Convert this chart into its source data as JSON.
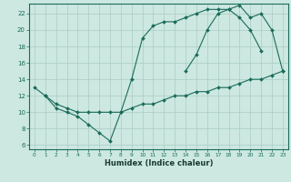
{
  "xlabel": "Humidex (Indice chaleur)",
  "bg_color": "#cce8e0",
  "grid_color": "#aaccC4",
  "line_color": "#1a6b5a",
  "xlim": [
    -0.5,
    23.5
  ],
  "ylim": [
    5.5,
    23.2
  ],
  "yticks": [
    6,
    8,
    10,
    12,
    14,
    16,
    18,
    20,
    22
  ],
  "xticks": [
    0,
    1,
    2,
    3,
    4,
    5,
    6,
    7,
    8,
    9,
    10,
    11,
    12,
    13,
    14,
    15,
    16,
    17,
    18,
    19,
    20,
    21,
    22,
    23
  ],
  "line1_x": [
    0,
    1,
    2,
    3,
    4,
    5,
    6,
    7,
    8,
    9,
    10,
    11,
    12,
    13,
    14,
    15,
    16,
    17,
    18,
    19,
    20,
    21
  ],
  "line1_y": [
    13,
    12,
    10.5,
    10,
    9.5,
    8.5,
    7.5,
    6.5,
    10,
    14,
    19,
    20.5,
    21,
    21,
    21.5,
    22,
    22.5,
    22.5,
    22.5,
    21.5,
    20,
    17.5
  ],
  "line2_x": [
    14,
    15,
    16,
    17,
    18,
    19,
    20,
    21,
    22,
    23
  ],
  "line2_y": [
    15,
    17,
    20,
    22,
    22.5,
    23,
    21.5,
    22,
    20,
    15
  ],
  "line3_x": [
    1,
    2,
    3,
    4,
    5,
    6,
    7,
    8,
    9,
    10,
    11,
    12,
    13,
    14,
    15,
    16,
    17,
    18,
    19,
    20,
    21,
    22,
    23
  ],
  "line3_y": [
    12,
    11,
    10.5,
    10,
    10,
    10,
    10,
    10,
    10.5,
    11,
    11,
    11.5,
    12,
    12,
    12.5,
    12.5,
    13,
    13,
    13.5,
    14,
    14,
    14.5,
    15
  ]
}
